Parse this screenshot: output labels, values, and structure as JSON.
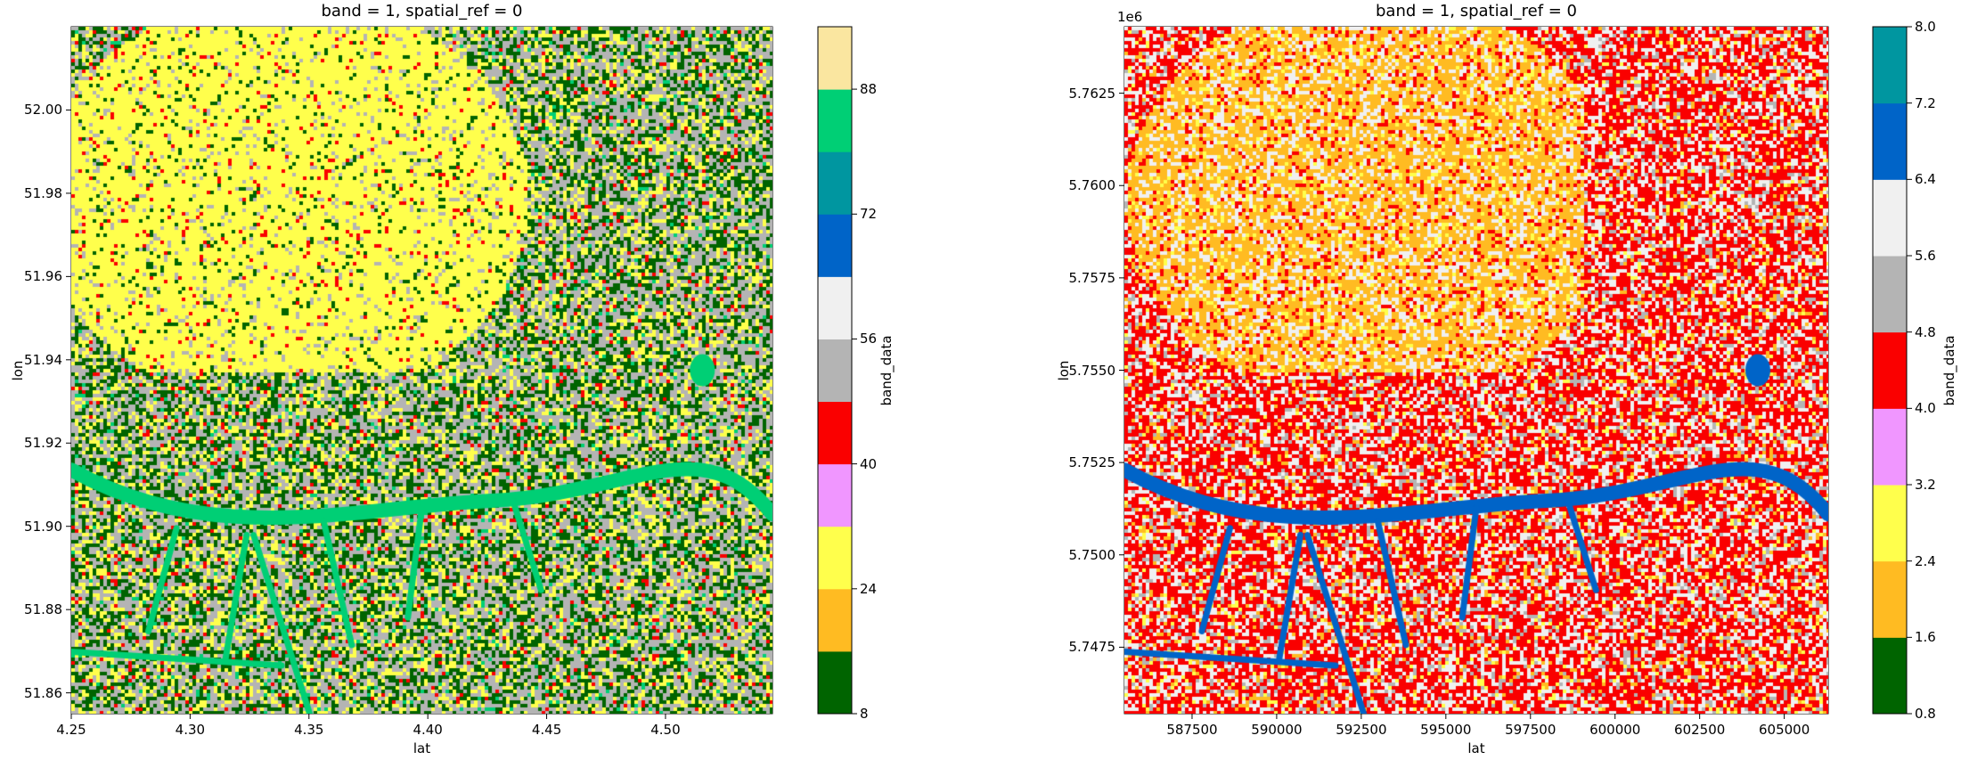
{
  "chart_data": [
    {
      "type": "heatmap",
      "title": "band = 1, spatial_ref = 0",
      "xlabel": "lat",
      "ylabel": "lon",
      "xlim": [
        4.25,
        4.545
      ],
      "ylim": [
        51.855,
        52.02
      ],
      "xticks": [
        "4.25",
        "4.30",
        "4.35",
        "4.40",
        "4.45",
        "4.50"
      ],
      "xtick_values": [
        4.25,
        4.3,
        4.35,
        4.4,
        4.45,
        4.5
      ],
      "yticks": [
        "51.86",
        "51.88",
        "51.90",
        "51.92",
        "51.94",
        "51.96",
        "51.98",
        "52.00"
      ],
      "ytick_values": [
        51.86,
        51.88,
        51.9,
        51.92,
        51.94,
        51.96,
        51.98,
        52.0
      ],
      "offset_label": "",
      "colorbar": {
        "label": "band_data",
        "range": [
          8,
          96
        ],
        "boundaries": [
          8,
          16,
          24,
          32,
          40,
          48,
          56,
          64,
          72,
          80,
          88,
          96
        ],
        "colors": [
          "#006400",
          "#ffbb22",
          "#ffff4c",
          "#f096ff",
          "#fa0000",
          "#b4b4b4",
          "#f0f0f0",
          "#0064c8",
          "#0096a0",
          "#00cf75",
          "#fae6a0"
        ],
        "ticks": [
          "8",
          "24",
          "40",
          "56",
          "72",
          "88"
        ],
        "tick_values": [
          8,
          24,
          40,
          56,
          72,
          88
        ]
      }
    },
    {
      "type": "heatmap",
      "title": "band = 1, spatial_ref = 0",
      "xlabel": "lat",
      "ylabel": "lon",
      "xlim": [
        585500,
        606300
      ],
      "ylim": [
        5745700,
        5764300
      ],
      "xticks": [
        "587500",
        "590000",
        "592500",
        "595000",
        "597500",
        "600000",
        "602500",
        "605000"
      ],
      "xtick_values": [
        587500,
        590000,
        592500,
        595000,
        597500,
        600000,
        602500,
        605000
      ],
      "yticks": [
        "5.7475",
        "5.7500",
        "5.7525",
        "5.7550",
        "5.7575",
        "5.7600",
        "5.7625"
      ],
      "ytick_values": [
        5747500,
        5750000,
        5752500,
        5755000,
        5757500,
        5760000,
        5762500
      ],
      "offset_label": "1e6",
      "colorbar": {
        "label": "band_data",
        "range": [
          0.8,
          8.0
        ],
        "boundaries": [
          0.8,
          1.6,
          2.4,
          3.2,
          4.0,
          4.8,
          5.6,
          6.4,
          7.2,
          8.0
        ],
        "colors": [
          "#006400",
          "#ffbb22",
          "#ffff4c",
          "#f096ff",
          "#fa0000",
          "#b4b4b4",
          "#f0f0f0",
          "#0064c8",
          "#0096a0"
        ],
        "ticks": [
          "0.8",
          "1.6",
          "2.4",
          "3.2",
          "4.0",
          "4.8",
          "5.6",
          "6.4",
          "7.2",
          "8.0"
        ],
        "tick_values": [
          0.8,
          1.6,
          2.4,
          3.2,
          4.0,
          4.8,
          5.6,
          6.4,
          7.2,
          8.0
        ]
      }
    }
  ]
}
